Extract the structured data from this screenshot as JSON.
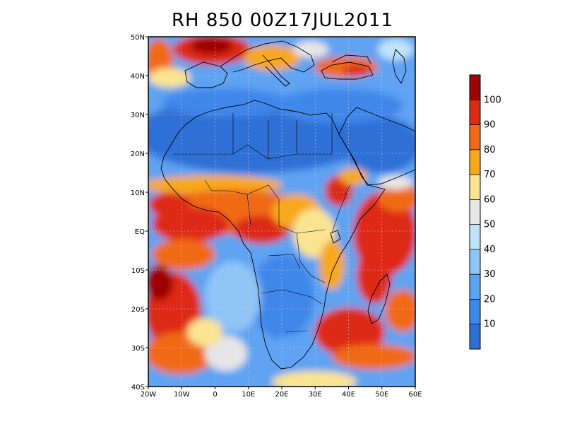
{
  "title": "RH 850 00Z17JUL2011",
  "map": {
    "variable": "Relative humidity at 850 hPa",
    "valid_time": "00Z17JUL2011",
    "lon_range": [
      -20,
      60
    ],
    "lat_range": [
      -40,
      50
    ],
    "lat_ticks": [
      "50N",
      "40N",
      "30N",
      "20N",
      "10N",
      "EQ",
      "10S",
      "20S",
      "30S",
      "40S"
    ],
    "lon_ticks": [
      "20W",
      "10W",
      "0",
      "10E",
      "20E",
      "30E",
      "40E",
      "50E",
      "60E"
    ],
    "grid": true
  },
  "colorbar": {
    "placement": "right",
    "levels": [
      10,
      20,
      30,
      40,
      50,
      60,
      70,
      80,
      90,
      100
    ],
    "labels": [
      "10",
      "20",
      "30",
      "40",
      "50",
      "60",
      "70",
      "80",
      "90",
      "100"
    ],
    "colors": [
      "#2e6fd6",
      "#3f87ea",
      "#5ea3f2",
      "#8fc4f6",
      "#bfe3fa",
      "#e6e6e6",
      "#fbe491",
      "#f7a81d",
      "#f06a18",
      "#dd2a12",
      "#9e0606"
    ]
  },
  "colors": {
    "coast": "#000000",
    "grid": "#cccccc"
  }
}
